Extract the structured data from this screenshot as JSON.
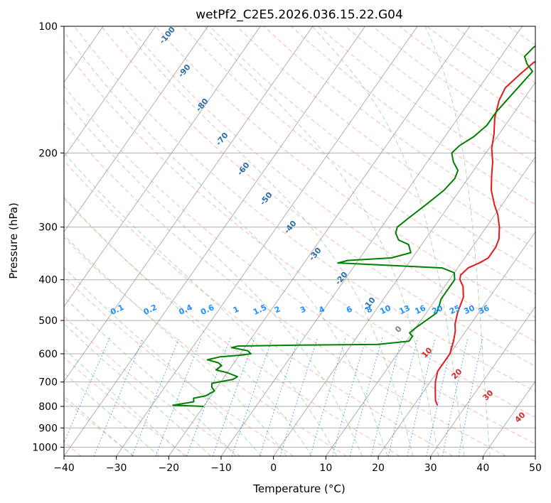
{
  "chart_data": {
    "type": "line",
    "title": "wetPf2_C2E5.2026.036.15.22.G04",
    "xlabel": "Temperature (°C)",
    "ylabel": "Pressure (hPa)",
    "xlim": [
      -40,
      50
    ],
    "ylim": [
      1050,
      100
    ],
    "yscale": "log",
    "x_ticks": [
      -40,
      -30,
      -20,
      -10,
      0,
      10,
      20,
      30,
      40,
      50
    ],
    "y_ticks": [
      100,
      200,
      300,
      400,
      500,
      600,
      700,
      800,
      900,
      1000
    ],
    "grid": true,
    "series": [
      {
        "color": "#e31a1c",
        "points": [
          [
            24.5,
            795
          ],
          [
            23.5,
            775
          ],
          [
            22.0,
            730
          ],
          [
            21.0,
            700
          ],
          [
            20.0,
            660
          ],
          [
            20.0,
            600
          ],
          [
            19.0,
            560
          ],
          [
            18.0,
            530
          ],
          [
            17.0,
            510
          ],
          [
            16.0,
            480
          ],
          [
            15.0,
            440
          ],
          [
            13.5,
            415
          ],
          [
            12.0,
            400
          ],
          [
            11.5,
            390
          ],
          [
            12.0,
            375
          ],
          [
            13.5,
            365
          ],
          [
            14.5,
            355
          ],
          [
            14.5,
            335
          ],
          [
            14.0,
            320
          ],
          [
            12.5,
            300
          ],
          [
            10.5,
            280
          ],
          [
            8.5,
            265
          ],
          [
            6.0,
            245
          ],
          [
            4.0,
            225
          ],
          [
            2.5,
            210
          ],
          [
            0.5,
            195
          ],
          [
            -1.0,
            180
          ],
          [
            -3.0,
            165
          ],
          [
            -4.5,
            150
          ],
          [
            -5.0,
            140
          ],
          [
            -4.0,
            130
          ],
          [
            -3.0,
            122
          ],
          [
            -1.0,
            115
          ],
          [
            0.5,
            110
          ],
          [
            1.0,
            105
          ],
          [
            1.0,
            100
          ]
        ]
      },
      {
        "color": "#008000",
        "points": [
          [
            -20.0,
            800
          ],
          [
            -26.0,
            795
          ],
          [
            -22.5,
            780
          ],
          [
            -23.0,
            765
          ],
          [
            -21.0,
            755
          ],
          [
            -20.0,
            735
          ],
          [
            -21.0,
            720
          ],
          [
            -21.5,
            705
          ],
          [
            -18.0,
            690
          ],
          [
            -17.5,
            680
          ],
          [
            -20.0,
            665
          ],
          [
            -22.5,
            655
          ],
          [
            -22.0,
            640
          ],
          [
            -23.0,
            630
          ],
          [
            -25.5,
            620
          ],
          [
            -23.5,
            610
          ],
          [
            -20.0,
            605
          ],
          [
            -18.0,
            600
          ],
          [
            -19.0,
            590
          ],
          [
            -22.5,
            580
          ],
          [
            -21.5,
            575
          ],
          [
            -10.0,
            572
          ],
          [
            5.0,
            570
          ],
          [
            10.5,
            560
          ],
          [
            10.5,
            545
          ],
          [
            9.5,
            535
          ],
          [
            10.0,
            520
          ],
          [
            11.0,
            500
          ],
          [
            12.0,
            480
          ],
          [
            11.5,
            460
          ],
          [
            11.0,
            445
          ],
          [
            11.0,
            420
          ],
          [
            11.0,
            400
          ],
          [
            10.0,
            385
          ],
          [
            7.0,
            375
          ],
          [
            -3.0,
            370
          ],
          [
            -13.5,
            365
          ],
          [
            -12.0,
            360
          ],
          [
            -4.0,
            355
          ],
          [
            -1.0,
            345
          ],
          [
            -2.5,
            330
          ],
          [
            -5.0,
            322
          ],
          [
            -6.5,
            310
          ],
          [
            -7.0,
            300
          ],
          [
            -6.0,
            285
          ],
          [
            -4.5,
            265
          ],
          [
            -3.0,
            245
          ],
          [
            -2.5,
            230
          ],
          [
            -3.0,
            220
          ],
          [
            -5.0,
            210
          ],
          [
            -6.5,
            200
          ],
          [
            -6.0,
            192
          ],
          [
            -4.5,
            183
          ],
          [
            -3.5,
            172
          ],
          [
            -3.5,
            160
          ],
          [
            -3.0,
            148
          ],
          [
            -2.5,
            138
          ],
          [
            -2.0,
            128
          ],
          [
            -4.0,
            123
          ],
          [
            -5.5,
            118
          ],
          [
            -5.0,
            112
          ],
          [
            -3.0,
            106
          ],
          [
            -1.5,
            100
          ]
        ]
      }
    ],
    "dry_adiabat_labels": [
      "-100",
      "-90",
      "-80",
      "-70",
      "-60",
      "-50",
      "-40",
      "-30",
      "-20",
      "-10"
    ],
    "mixing_ratio_labels": [
      "0.1",
      "0.2",
      "0.4",
      "0.6",
      "1",
      "1.5",
      "2",
      "3",
      "4",
      "6",
      "8",
      "10",
      "13",
      "16",
      "20",
      "25",
      "30",
      "36"
    ],
    "moist_adiabat_labels": [
      "0",
      "10",
      "20",
      "30",
      "40"
    ],
    "colors": {
      "temperature": "#e31a1c",
      "dewpoint": "#008000",
      "dry_adiabat": "#fa8072",
      "moist_adiabat": "#7fbf7f",
      "mixing_ratio": "#1e90ff",
      "isotherm": "#808080",
      "dry_adiabat_label": "#2c6fa8",
      "moist_adiabat_label": "#d62728",
      "mixing_ratio_label": "#1e90ff",
      "zero_label": "#808080"
    }
  }
}
